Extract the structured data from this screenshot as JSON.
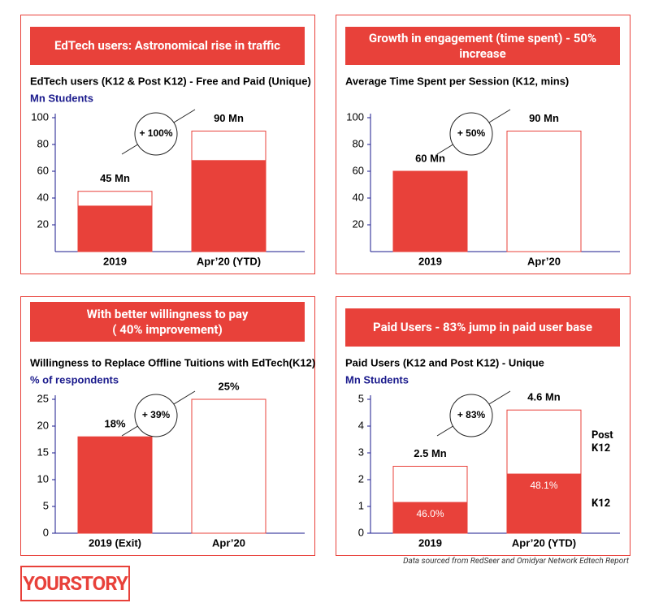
{
  "chart_data": [
    {
      "type": "overlay_bar",
      "header": "EdTech users: Astronomical rise in traffic",
      "title": "EdTech users (K12 & Post K12) - Free and Paid (Unique)",
      "y_label": "Mn Students",
      "categories": [
        "2019",
        "Apr’20 (YTD)"
      ],
      "ylim": [
        0,
        100
      ],
      "yticks": [
        20,
        40,
        60,
        80,
        100
      ],
      "stroke": "#e8413a",
      "annotation": "+ 100%",
      "series": [
        {
          "fills": [
            "#ffffff",
            "#ffffff"
          ],
          "values": [
            45,
            90
          ],
          "value_labels": [
            "45 Mn",
            "90 Mn"
          ]
        },
        {
          "fills": [
            "#e8413a",
            "#e8413a"
          ],
          "values": [
            34,
            68
          ]
        }
      ]
    },
    {
      "type": "overlay_bar",
      "header": "Growth in engagement (time spent) - 50% increase",
      "title": "Average Time Spent per Session (K12, mins)",
      "categories": [
        "2019",
        "Apr’20"
      ],
      "ylim": [
        0,
        100
      ],
      "yticks": [
        20,
        40,
        60,
        80,
        100
      ],
      "stroke": "#e8413a",
      "annotation": "+ 50%",
      "series": [
        {
          "fills": [
            "#e8413a",
            "#ffffff"
          ],
          "values": [
            60,
            90
          ],
          "value_labels": [
            "60 Mn",
            "90 Mn"
          ]
        }
      ]
    },
    {
      "type": "overlay_bar",
      "header": "With better willingness to pay\n( 40% improvement)",
      "title": "Willingness to Replace Offline Tuitions with EdTech(K12)",
      "y_label": "% of respondents",
      "categories": [
        "2019 (Exit)",
        "Apr’20"
      ],
      "ylim": [
        0,
        25
      ],
      "yticks": [
        0,
        5,
        10,
        15,
        20,
        25
      ],
      "stroke": "#e8413a",
      "annotation": "+ 39%",
      "series": [
        {
          "fills": [
            "#e8413a",
            "#ffffff"
          ],
          "values": [
            18,
            25
          ],
          "value_labels": [
            "18%",
            "25%"
          ]
        }
      ]
    },
    {
      "type": "overlay_bar",
      "header": "Paid Users - 83% jump in paid user base",
      "title": "Paid Users (K12 and Post K12) - Unique",
      "y_label": "Mn Students",
      "categories": [
        "2019",
        "Apr’20 (YTD)"
      ],
      "ylim": [
        0,
        5
      ],
      "yticks": [
        0,
        1,
        2,
        3,
        4,
        5
      ],
      "stroke": "#e8413a",
      "annotation": "+ 83%",
      "series": [
        {
          "name": "Post\nK12",
          "fills": [
            "#ffffff",
            "#ffffff"
          ],
          "values": [
            2.5,
            4.6
          ],
          "value_labels": [
            "2.5 Mn",
            "4.6 Mn"
          ]
        },
        {
          "name": "K12",
          "fills": [
            "#e8413a",
            "#e8413a"
          ],
          "values": [
            1.15,
            2.21
          ],
          "share_labels": [
            "46.0%",
            "48.1%"
          ]
        }
      ]
    }
  ],
  "source": "Data sourced from RedSeer and Omidyar Network Edtech Report",
  "logo": "YOURSTORY"
}
